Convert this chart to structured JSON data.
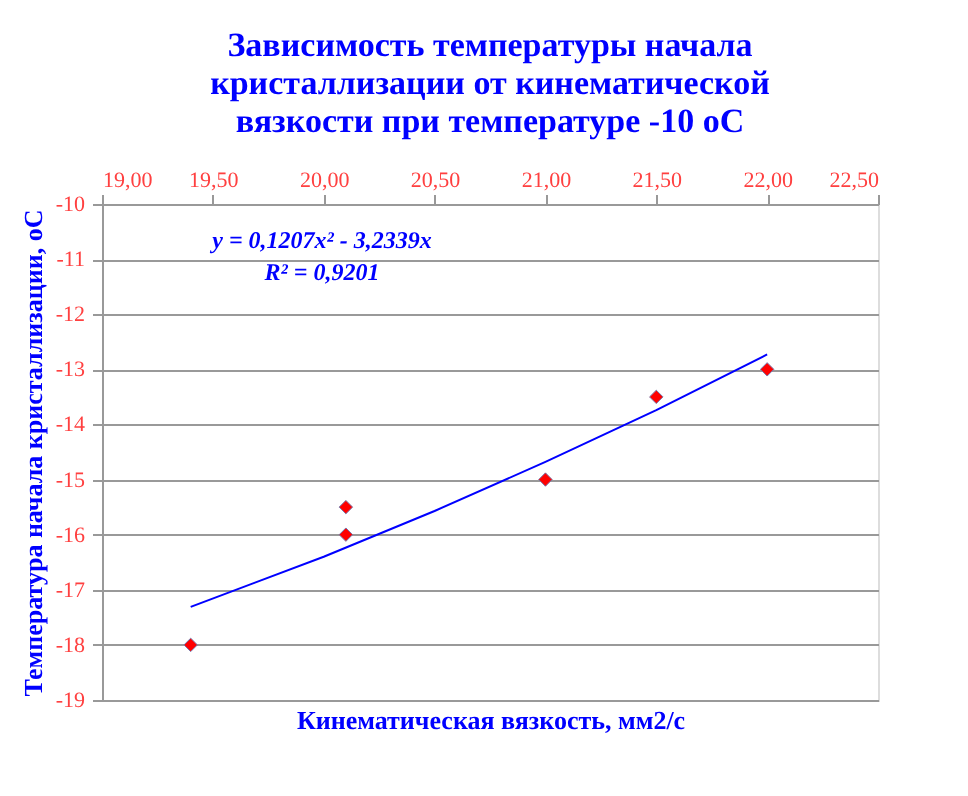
{
  "chart_data": {
    "type": "scatter",
    "title": [
      "Зависимость температуры  начала",
      "кристаллизации от кинематической",
      "вязкости при температуре  -10 оС"
    ],
    "xlabel": "Кинематическая вязкость, мм2/с",
    "ylabel": "Температура начала кристаллизации, оС",
    "series": [
      {
        "color": "#ff0000",
        "marker": "diamond",
        "x": [
          19.4,
          20.1,
          20.1,
          21.0,
          21.5,
          22.0
        ],
        "values": [
          -18,
          -15.5,
          -16,
          -15,
          -13.5,
          -13
        ]
      },
      {
        "type": "line",
        "color": "#0000ff",
        "marker": "none",
        "line_style": "solid",
        "x": [
          19.4,
          20.0,
          20.5,
          21.0,
          21.5,
          22.0
        ],
        "values": [
          -17.31,
          -16.4,
          -15.57,
          -14.68,
          -13.74,
          -12.73
        ]
      }
    ],
    "annotations": [
      "y = 0,1207x² - 3,2339x",
      "R² = 0,9201"
    ],
    "xlim": [
      19.0,
      22.5
    ],
    "xticks": [
      {
        "value": 19.0,
        "label": "19,00"
      },
      {
        "value": 19.5,
        "label": "19,50"
      },
      {
        "value": 20.0,
        "label": "20,00"
      },
      {
        "value": 20.5,
        "label": "20,50"
      },
      {
        "value": 21.0,
        "label": "21,00"
      },
      {
        "value": 21.5,
        "label": "21,50"
      },
      {
        "value": 22.0,
        "label": "22,00"
      },
      {
        "value": 22.5,
        "label": "22,50"
      }
    ],
    "ylim": [
      -19,
      -10
    ],
    "yticks": [
      -19,
      -18,
      -17,
      -16,
      -15,
      -14,
      -13,
      -12,
      -11,
      -10
    ],
    "grid": "y"
  }
}
